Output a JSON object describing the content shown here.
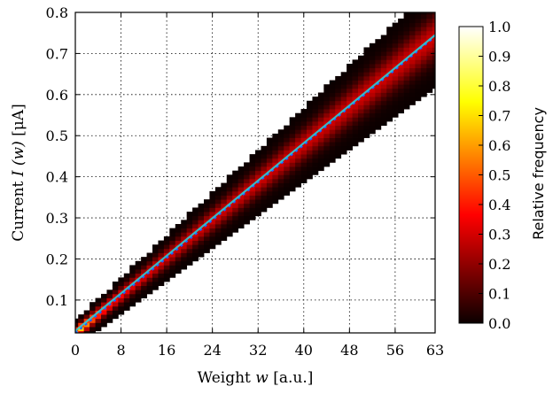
{
  "chart_data": {
    "type": "heatmap",
    "title": "",
    "xlabel": "Weight w [a.u.]",
    "ylabel": "Current I (w) [μA]",
    "xlabel_parts": {
      "pre": "Weight ",
      "math": "w",
      "post": " [a.u.]"
    },
    "ylabel_parts": {
      "pre": "Current ",
      "math": "I (w)",
      "post": " [μA]"
    },
    "xlim": [
      0,
      63
    ],
    "ylim": [
      0.02,
      0.8
    ],
    "x_ticks": [
      0,
      8,
      16,
      24,
      32,
      40,
      48,
      56,
      63
    ],
    "x_tick_labels": [
      "0",
      "8",
      "16",
      "24",
      "32",
      "40",
      "48",
      "56",
      "63"
    ],
    "y_ticks": [
      0.1,
      0.2,
      0.3,
      0.4,
      0.5,
      0.6,
      0.7,
      0.8
    ],
    "y_tick_labels": [
      "0.1",
      "0.2",
      "0.3",
      "0.4",
      "0.5",
      "0.6",
      "0.7",
      "0.8"
    ],
    "grid": true,
    "grid_style": "dotted",
    "heatmap": {
      "description_of_center": "I(w) ≈ 0.02 + 0.01146·w",
      "center_intercept": 0.02,
      "center_slope": 0.01146,
      "spread_intercept": 0.012,
      "spread_slope": 0.00055,
      "colormap": "hot"
    },
    "series": [
      {
        "style": "dashed-points",
        "color": "#1f5fff",
        "x": [
          0,
          8,
          16,
          24,
          32,
          40,
          48,
          56,
          63
        ],
        "values": [
          0.02,
          0.112,
          0.203,
          0.295,
          0.387,
          0.478,
          0.57,
          0.661,
          0.742
        ]
      },
      {
        "style": "line",
        "color": "#22d6e0",
        "x": [
          0,
          63
        ],
        "values": [
          0.025,
          0.745
        ]
      }
    ],
    "colorbar": {
      "label": "Relative frequency",
      "min": 0.0,
      "max": 1.0,
      "ticks": [
        0.0,
        0.1,
        0.2,
        0.3,
        0.4,
        0.5,
        0.6,
        0.7,
        0.8,
        0.9,
        1.0
      ],
      "tick_labels": [
        "0.0",
        "0.1",
        "0.2",
        "0.3",
        "0.4",
        "0.5",
        "0.6",
        "0.7",
        "0.8",
        "0.9",
        "1.0"
      ],
      "colormap": "hot"
    }
  }
}
